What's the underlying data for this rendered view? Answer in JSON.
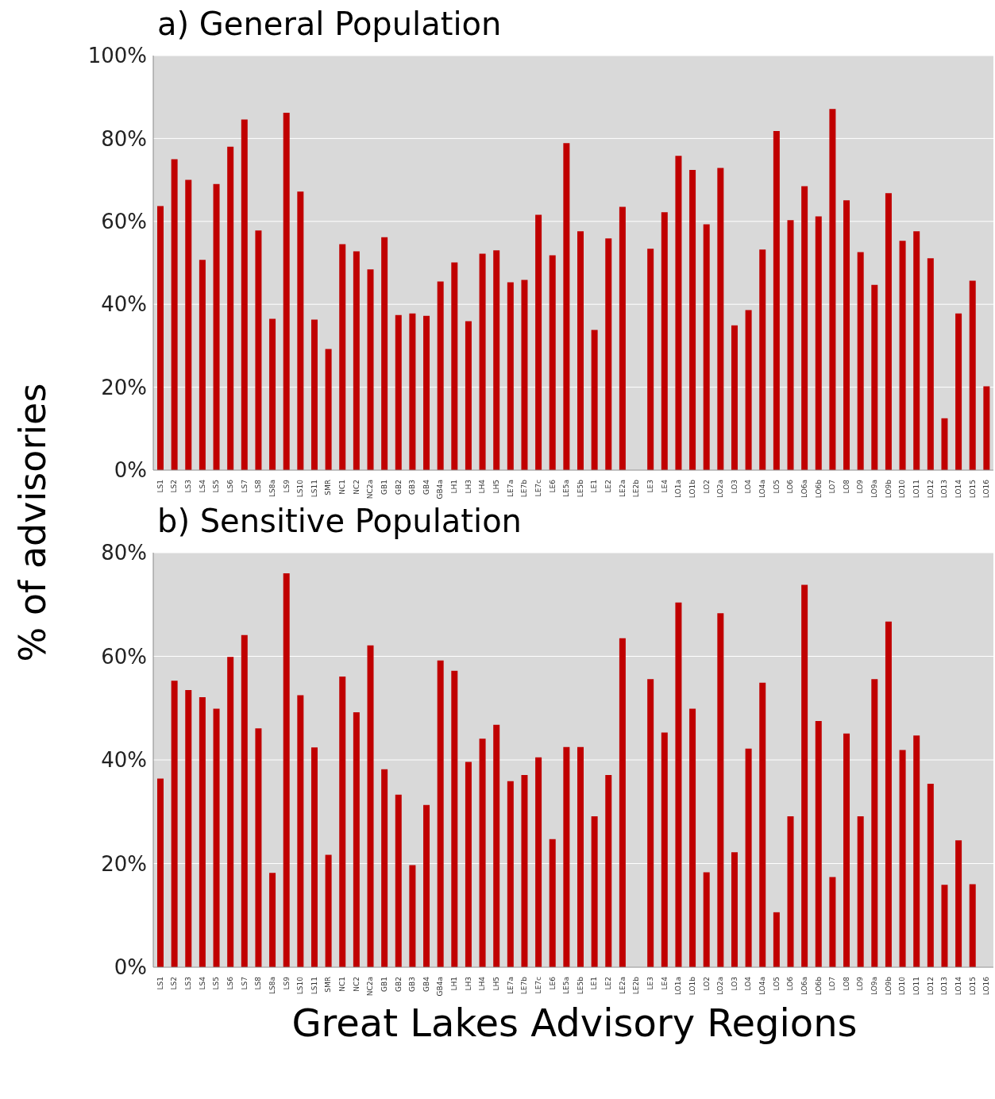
{
  "chart_data": [
    {
      "type": "bar",
      "title": "a) General Population",
      "ylabel": "% of advisories",
      "categories": [
        "LS1",
        "LS2",
        "LS3",
        "LS4",
        "LS5",
        "LS6",
        "LS7",
        "LS8",
        "LS8a",
        "LS9",
        "LS10",
        "LS11",
        "SMR",
        "NC1",
        "NC2",
        "NC2a",
        "GB1",
        "GB2",
        "GB3",
        "GB4",
        "GB4a",
        "LH1",
        "LH3",
        "LH4",
        "LH5",
        "LE7a",
        "LE7b",
        "LE7c",
        "LE6",
        "LE5a",
        "LE5b",
        "LE1",
        "LE2",
        "LE2a",
        "LE2b",
        "LE3",
        "LE4",
        "LO1a",
        "LO1b",
        "LO2",
        "LO2a",
        "LO3",
        "LO4",
        "LO4a",
        "LO5",
        "LO6",
        "LO6a",
        "LO6b",
        "LO7",
        "LO8",
        "LO9",
        "LO9a",
        "LO9b",
        "LO10",
        "LO11",
        "LO12",
        "LO13",
        "LO14",
        "LO15",
        "LO16"
      ],
      "values": [
        63.7,
        75,
        70,
        50.7,
        69,
        78,
        84.6,
        57.8,
        36.5,
        86.2,
        67.2,
        36.3,
        29.2,
        54.5,
        52.8,
        48.4,
        56.2,
        37.4,
        37.8,
        37.2,
        45.5,
        50.1,
        35.9,
        52.2,
        53,
        45.3,
        45.9,
        61.6,
        51.8,
        78.9,
        57.6,
        33.8,
        55.9,
        63.5,
        0,
        53.4,
        62.2,
        75.8,
        72.4,
        59.3,
        72.9,
        34.9,
        38.6,
        53.2,
        81.8,
        60.3,
        68.5,
        61.2,
        87.1,
        65.1,
        52.6,
        44.7,
        66.8,
        55.3,
        57.6,
        51.1,
        12.5,
        37.8,
        45.7,
        20.2
      ],
      "color": "#c00000",
      "ylim": [
        0,
        100
      ],
      "yticks": [
        {
          "value": 0,
          "label": "0%"
        },
        {
          "value": 20,
          "label": "20%"
        },
        {
          "value": 40,
          "label": "40%"
        },
        {
          "value": 60,
          "label": "60%"
        },
        {
          "value": 80,
          "label": "80%"
        },
        {
          "value": 100,
          "label": "100%"
        }
      ],
      "grid": "y",
      "legend": false
    },
    {
      "type": "bar",
      "title": "b) Sensitive Population",
      "xlabel": "Great Lakes Advisory Regions",
      "categories": [
        "LS1",
        "LS2",
        "LS3",
        "LS4",
        "LS5",
        "LS6",
        "LS7",
        "LS8",
        "LS8a",
        "LS9",
        "LS10",
        "LS11",
        "SMR",
        "NC1",
        "NC2",
        "NC2a",
        "GB1",
        "GB2",
        "GB3",
        "GB4",
        "GB4a",
        "LH1",
        "LH3",
        "LH4",
        "LH5",
        "LE7a",
        "LE7b",
        "LE7c",
        "LE6",
        "LE5a",
        "LE5b",
        "LE1",
        "LE2",
        "LE2a",
        "LE2b",
        "LE3",
        "LE4",
        "LO1a",
        "LO1b",
        "LO2",
        "LO2a",
        "LO3",
        "LO4",
        "LO4a",
        "LO5",
        "LO6",
        "LO6a",
        "LO6b",
        "LO7",
        "LO8",
        "LO9",
        "LO9a",
        "LO9b",
        "LO10",
        "LO11",
        "LO12",
        "LO13",
        "LO14",
        "LO15",
        "LO16"
      ],
      "values": [
        36.4,
        55.3,
        53.5,
        52.1,
        49.9,
        59.9,
        64.1,
        46.1,
        18.2,
        76,
        52.5,
        42.4,
        21.7,
        56.1,
        49.2,
        62.1,
        38.2,
        33.3,
        19.7,
        31.3,
        59.2,
        57.2,
        39.6,
        44.1,
        46.8,
        35.9,
        37.1,
        40.5,
        24.7,
        42.5,
        42.5,
        29.1,
        37.1,
        63.5,
        0,
        55.6,
        45.3,
        70.4,
        49.9,
        18.3,
        68.3,
        22.2,
        42.2,
        54.9,
        10.6,
        29.1,
        73.8,
        47.5,
        17.4,
        45.1,
        29.1,
        55.6,
        66.7,
        41.9,
        44.7,
        35.4,
        15.9,
        24.5,
        16,
        0
      ],
      "color": "#c00000",
      "ylim": [
        0,
        80
      ],
      "yticks": [
        {
          "value": 0,
          "label": "0%"
        },
        {
          "value": 20,
          "label": "20%"
        },
        {
          "value": 40,
          "label": "40%"
        },
        {
          "value": 60,
          "label": "60%"
        },
        {
          "value": 80,
          "label": "80%"
        }
      ],
      "grid": "y",
      "legend": false
    }
  ]
}
